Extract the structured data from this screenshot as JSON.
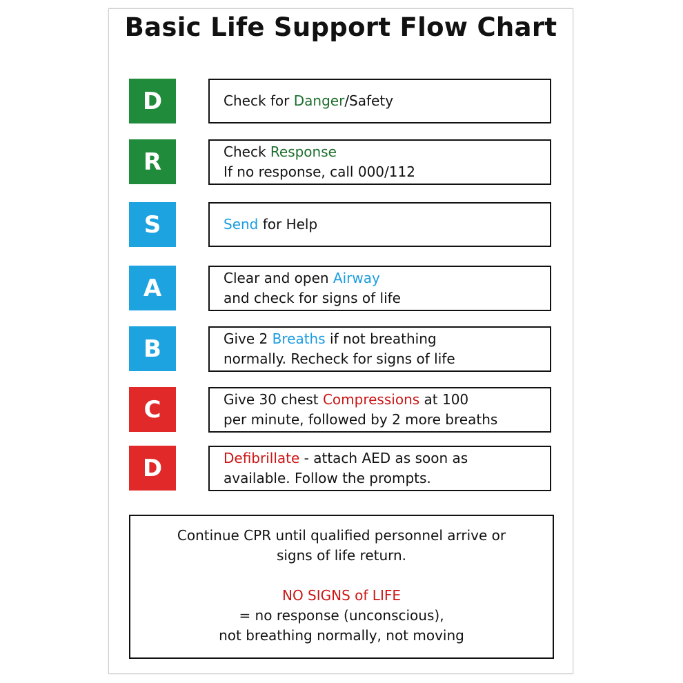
{
  "title": "Basic Life Support Flow Chart",
  "colors": {
    "green": "#1f8b3b",
    "blue": "#1ea3e1",
    "red": "#e1292a",
    "green_text": "#1c6e2c",
    "blue_text": "#1a9ce0",
    "red_text": "#cc1515"
  },
  "steps": [
    {
      "letter": "D",
      "color": "green",
      "lines": [
        [
          {
            "t": "Check for "
          },
          {
            "t": "Danger",
            "hl": "green"
          },
          {
            "t": "/Safety"
          }
        ]
      ]
    },
    {
      "letter": "R",
      "color": "green",
      "lines": [
        [
          {
            "t": "Check "
          },
          {
            "t": "Response",
            "hl": "green"
          }
        ],
        [
          {
            "t": "If no response, call 000/112"
          }
        ]
      ]
    },
    {
      "letter": "S",
      "color": "blue",
      "lines": [
        [
          {
            "t": "Send",
            "hl": "blue"
          },
          {
            "t": " for Help"
          }
        ]
      ]
    },
    {
      "letter": "A",
      "color": "blue",
      "lines": [
        [
          {
            "t": "Clear and open "
          },
          {
            "t": "Airway",
            "hl": "blue"
          }
        ],
        [
          {
            "t": "and check for signs of life"
          }
        ]
      ]
    },
    {
      "letter": "B",
      "color": "blue",
      "lines": [
        [
          {
            "t": "Give 2 "
          },
          {
            "t": "Breaths",
            "hl": "blue"
          },
          {
            "t": " if not breathing"
          }
        ],
        [
          {
            "t": "normally. Recheck for signs of life"
          }
        ]
      ]
    },
    {
      "letter": "C",
      "color": "red",
      "lines": [
        [
          {
            "t": "Give 30 chest "
          },
          {
            "t": "Compressions",
            "hl": "red"
          },
          {
            "t": " at 100"
          }
        ],
        [
          {
            "t": "per minute, followed by 2 more breaths"
          }
        ]
      ]
    },
    {
      "letter": "D",
      "color": "red",
      "lines": [
        [
          {
            "t": "Defibrillate",
            "hl": "red"
          },
          {
            "t": " - attach AED as soon as"
          }
        ],
        [
          {
            "t": "available. Follow the prompts."
          }
        ]
      ]
    }
  ],
  "footer": {
    "line1": "Continue CPR until qualified personnel arrive or",
    "line2": "signs of life return.",
    "heading": "NO SIGNS of LIFE",
    "line3": "= no response (unconscious),",
    "line4": "not breathing normally, not moving"
  }
}
